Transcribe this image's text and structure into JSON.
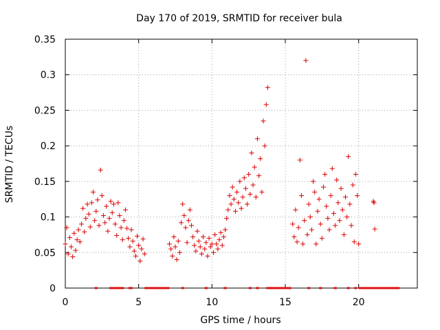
{
  "chart_data": {
    "type": "scatter",
    "title": "Day 170 of 2019, SRMTID for receiver bula",
    "xlabel": "GPS time / hours",
    "ylabel": "SRMTID / TECUs",
    "xlim": [
      0,
      24
    ],
    "ylim": [
      0,
      0.35
    ],
    "xticks": [
      0,
      5,
      10,
      15,
      20
    ],
    "xtick_labels": [
      "0",
      "5",
      "10",
      "15",
      "20"
    ],
    "yticks": [
      0,
      0.05,
      0.1,
      0.15,
      0.2,
      0.25,
      0.3,
      0.35
    ],
    "ytick_labels": [
      "0",
      "0.05",
      "0.1",
      "0.15",
      "0.2",
      "0.25",
      "0.3",
      "0.35"
    ],
    "grid": true,
    "marker": "+",
    "color": "#dd1111",
    "series": [
      {
        "name": "SRMTID",
        "x": [
          0.0,
          0.1,
          0.2,
          0.3,
          0.4,
          0.5,
          0.6,
          0.7,
          0.8,
          0.9,
          1.0,
          1.1,
          1.2,
          1.3,
          1.4,
          1.5,
          1.6,
          1.7,
          1.8,
          1.9,
          2.0,
          2.1,
          2.2,
          2.3,
          2.4,
          2.5,
          2.6,
          2.7,
          2.8,
          2.9,
          3.0,
          3.1,
          3.2,
          3.3,
          3.4,
          3.5,
          3.6,
          3.7,
          3.8,
          3.9,
          4.0,
          4.1,
          4.2,
          4.3,
          4.4,
          4.5,
          4.6,
          4.7,
          4.8,
          4.9,
          5.0,
          5.1,
          5.2,
          5.3,
          5.4,
          7.1,
          7.2,
          7.3,
          7.4,
          7.5,
          7.6,
          7.7,
          7.8,
          7.9,
          8.0,
          8.1,
          8.2,
          8.3,
          8.4,
          8.5,
          8.6,
          8.7,
          8.8,
          8.9,
          9.0,
          9.1,
          9.2,
          9.3,
          9.4,
          9.5,
          9.6,
          9.7,
          9.8,
          9.9,
          10.0,
          10.1,
          10.2,
          10.3,
          10.4,
          10.5,
          10.6,
          10.7,
          10.8,
          10.9,
          11.0,
          11.1,
          11.2,
          11.3,
          11.4,
          11.5,
          11.6,
          11.7,
          11.8,
          11.9,
          12.0,
          12.1,
          12.2,
          12.3,
          12.4,
          12.5,
          12.6,
          12.7,
          12.8,
          12.9,
          13.0,
          13.1,
          13.2,
          13.3,
          13.4,
          13.5,
          13.6,
          13.7,
          13.8,
          15.5,
          15.6,
          15.7,
          15.8,
          15.9,
          16.0,
          16.1,
          16.2,
          16.3,
          16.4,
          16.5,
          16.6,
          16.7,
          16.8,
          16.9,
          17.0,
          17.1,
          17.2,
          17.3,
          17.4,
          17.5,
          17.6,
          17.7,
          17.8,
          17.9,
          18.0,
          18.1,
          18.2,
          18.3,
          18.4,
          18.5,
          18.6,
          18.7,
          18.8,
          18.9,
          19.0,
          19.1,
          19.2,
          19.3,
          19.4,
          19.5,
          19.6,
          19.7,
          19.8,
          19.9,
          20.0,
          21.0,
          21.05,
          21.1
        ],
        "y": [
          0.062,
          0.085,
          0.048,
          0.071,
          0.058,
          0.044,
          0.077,
          0.053,
          0.068,
          0.082,
          0.065,
          0.09,
          0.112,
          0.079,
          0.098,
          0.118,
          0.104,
          0.086,
          0.12,
          0.135,
          0.095,
          0.108,
          0.124,
          0.088,
          0.166,
          0.13,
          0.102,
          0.092,
          0.115,
          0.08,
          0.098,
          0.122,
          0.106,
          0.118,
          0.09,
          0.074,
          0.12,
          0.102,
          0.085,
          0.068,
          0.095,
          0.11,
          0.084,
          0.07,
          0.058,
          0.082,
          0.066,
          0.052,
          0.045,
          0.073,
          0.06,
          0.038,
          0.055,
          0.069,
          0.048,
          0.062,
          0.055,
          0.045,
          0.072,
          0.058,
          0.04,
          0.066,
          0.05,
          0.092,
          0.118,
          0.102,
          0.085,
          0.064,
          0.095,
          0.11,
          0.088,
          0.072,
          0.06,
          0.052,
          0.08,
          0.066,
          0.058,
          0.048,
          0.072,
          0.055,
          0.064,
          0.045,
          0.07,
          0.058,
          0.062,
          0.05,
          0.075,
          0.062,
          0.055,
          0.068,
          0.078,
          0.06,
          0.072,
          0.082,
          0.098,
          0.11,
          0.13,
          0.118,
          0.142,
          0.125,
          0.108,
          0.135,
          0.12,
          0.15,
          0.112,
          0.128,
          0.155,
          0.14,
          0.118,
          0.16,
          0.132,
          0.19,
          0.145,
          0.17,
          0.128,
          0.21,
          0.158,
          0.182,
          0.135,
          0.235,
          0.2,
          0.258,
          0.282,
          0.09,
          0.072,
          0.11,
          0.065,
          0.085,
          0.18,
          0.13,
          0.062,
          0.095,
          0.32,
          0.075,
          0.118,
          0.1,
          0.082,
          0.15,
          0.135,
          0.062,
          0.108,
          0.125,
          0.09,
          0.07,
          0.142,
          0.16,
          0.115,
          0.098,
          0.082,
          0.13,
          0.168,
          0.105,
          0.088,
          0.152,
          0.12,
          0.095,
          0.14,
          0.11,
          0.075,
          0.128,
          0.1,
          0.185,
          0.118,
          0.088,
          0.145,
          0.065,
          0.16,
          0.13,
          0.062,
          0.122,
          0.12,
          0.083
        ],
        "zero_bars": [
          [
            2.0,
            2.2
          ],
          [
            3.0,
            4.0
          ],
          [
            4.3,
            4.6
          ],
          [
            5.4,
            7.1
          ],
          [
            7.9,
            8.1
          ],
          [
            9.5,
            9.7
          ],
          [
            10.8,
            11.0
          ],
          [
            12.5,
            12.7
          ],
          [
            13.0,
            13.2
          ],
          [
            13.7,
            15.4
          ],
          [
            16.5,
            16.7
          ],
          [
            17.3,
            17.5
          ],
          [
            18.3,
            18.5
          ],
          [
            19.2,
            19.4
          ],
          [
            19.7,
            19.9
          ],
          [
            20.0,
            22.8
          ]
        ]
      }
    ]
  }
}
